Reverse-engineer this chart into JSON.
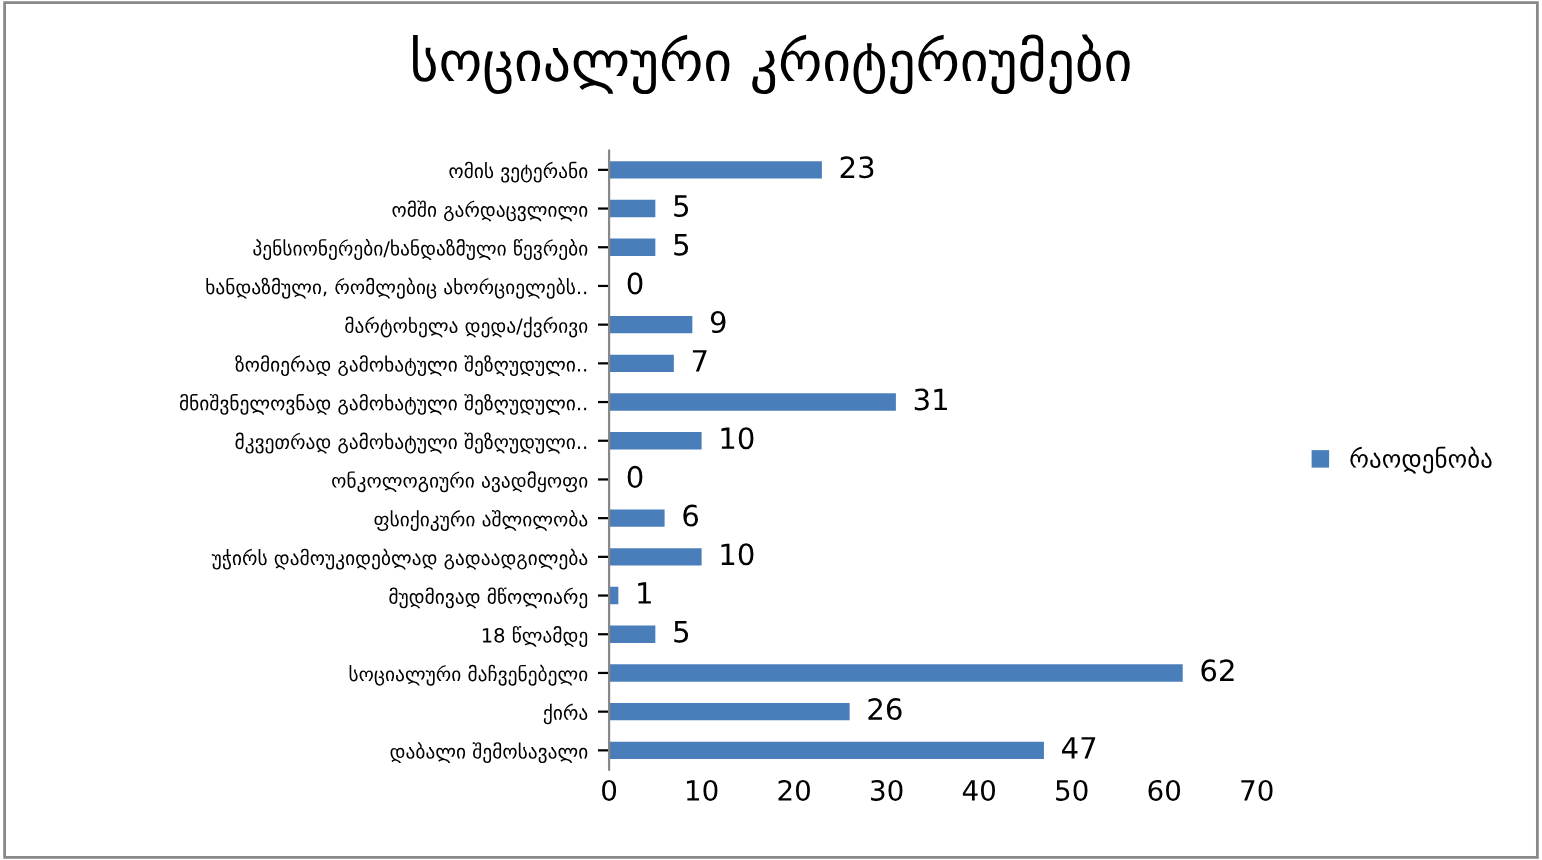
{
  "chart_data": {
    "type": "bar",
    "orientation": "horizontal",
    "title": "სოციალური კრიტერიუმები",
    "categories": [
      "ომის ვეტერანი",
      "ომში გარდაცვლილი",
      "პენსიონერები/ხანდაზმული წევრები",
      "ხანდაზმული, რომლებიც ახორციელებს..",
      "მარტოხელა დედა/ქვრივი",
      "ზომიერად გამოხატული შეზღუდული..",
      "მნიშვნელოვნად გამოხატული შეზღუდული..",
      "მკვეთრად გამოხატული შეზღუდული..",
      "ონკოლოგიური ავადმყოფი",
      "ფსიქიკური აშლილობა",
      "უჭირს დამოუკიდებლად გადაადგილება",
      "მუდმივად მწოლიარე",
      "18 წლამდე",
      "სოციალური მაჩვენებელი",
      "ქირა",
      "დაბალი შემოსავალი"
    ],
    "series": [
      {
        "name": "რაოდენობა",
        "color": "#4a7ebb",
        "values": [
          23,
          5,
          5,
          0,
          9,
          7,
          31,
          10,
          0,
          6,
          10,
          1,
          5,
          62,
          26,
          47
        ]
      }
    ],
    "xlim": [
      0,
      70
    ],
    "xticks": [
      0,
      10,
      20,
      30,
      40,
      50,
      60,
      70
    ],
    "data_labels": true,
    "legend": "right",
    "grid": false
  }
}
